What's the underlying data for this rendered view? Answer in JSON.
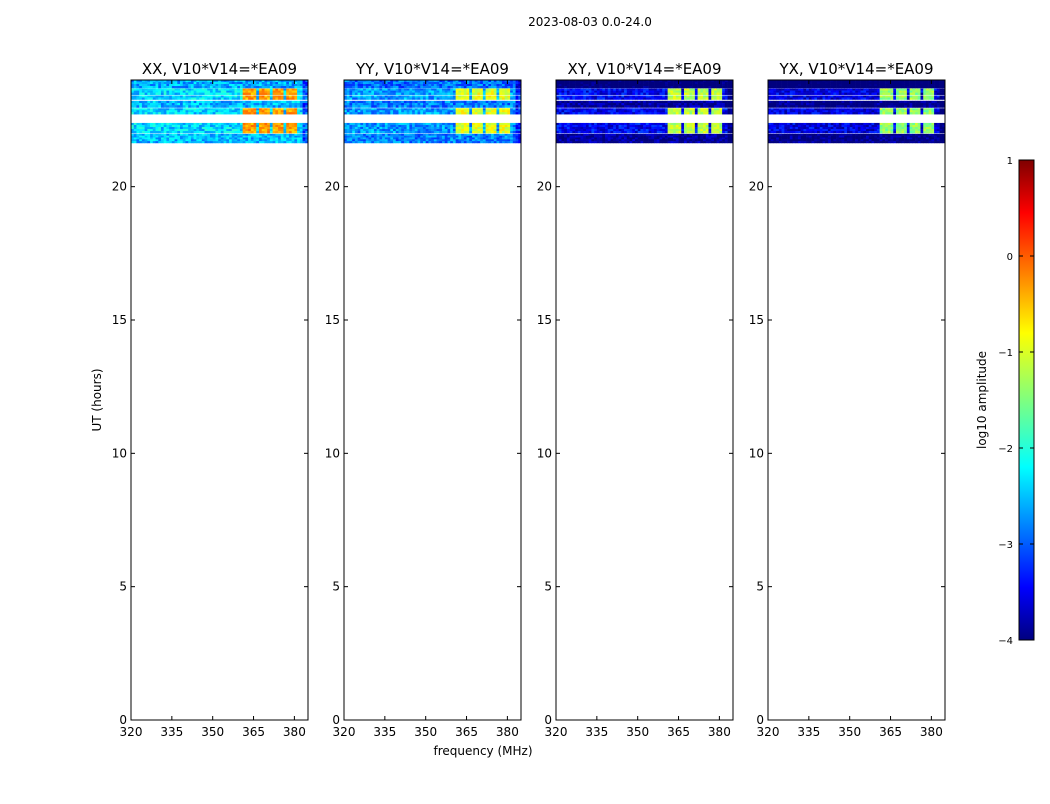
{
  "chart_data": {
    "type": "heatmap",
    "suptitle": "2023-08-03 0.0-24.0",
    "xlabel": "frequency (MHz)",
    "ylabel": "UT (hours)",
    "xlim": [
      320,
      385
    ],
    "ylim": [
      0,
      24
    ],
    "xticks": [
      "320",
      "335",
      "350",
      "365",
      "380"
    ],
    "xtick_values": [
      320,
      335,
      350,
      365,
      380
    ],
    "yticks": [
      "0",
      "5",
      "10",
      "15",
      "20"
    ],
    "ytick_values": [
      0,
      5,
      10,
      15,
      20
    ],
    "panels": [
      {
        "title": "XX, V10*V14=*EA09",
        "base": -2.3,
        "hot": -0.4
      },
      {
        "title": "YY, V10*V14=*EA09",
        "base": -2.6,
        "hot": -1.0
      },
      {
        "title": "XY, V10*V14=*EA09",
        "base": -3.4,
        "hot": -1.2
      },
      {
        "title": "YX, V10*V14=*EA09",
        "base": -3.5,
        "hot": -1.4
      }
    ],
    "time_bands_hours": [
      [
        23.7,
        24.0,
        -0.8
      ],
      [
        23.45,
        23.68,
        0
      ],
      [
        23.27,
        23.42,
        0
      ],
      [
        22.97,
        23.22,
        -0.5
      ],
      [
        22.72,
        22.94,
        0
      ],
      [
        22.01,
        22.39,
        0
      ],
      [
        21.64,
        21.98,
        -0.5
      ]
    ],
    "bright_channels_mhz": [
      [
        361,
        365.6
      ],
      [
        366.3,
        370.4
      ],
      [
        371.5,
        375.9
      ],
      [
        376.6,
        380.7
      ]
    ],
    "colorbar": {
      "label": "log10 amplitude",
      "range": [
        -4,
        1
      ],
      "ticks": [
        "1",
        "0",
        "−1",
        "−2",
        "−3",
        "−4"
      ],
      "tick_values": [
        1,
        0,
        -1,
        -2,
        -3,
        -4
      ]
    }
  }
}
